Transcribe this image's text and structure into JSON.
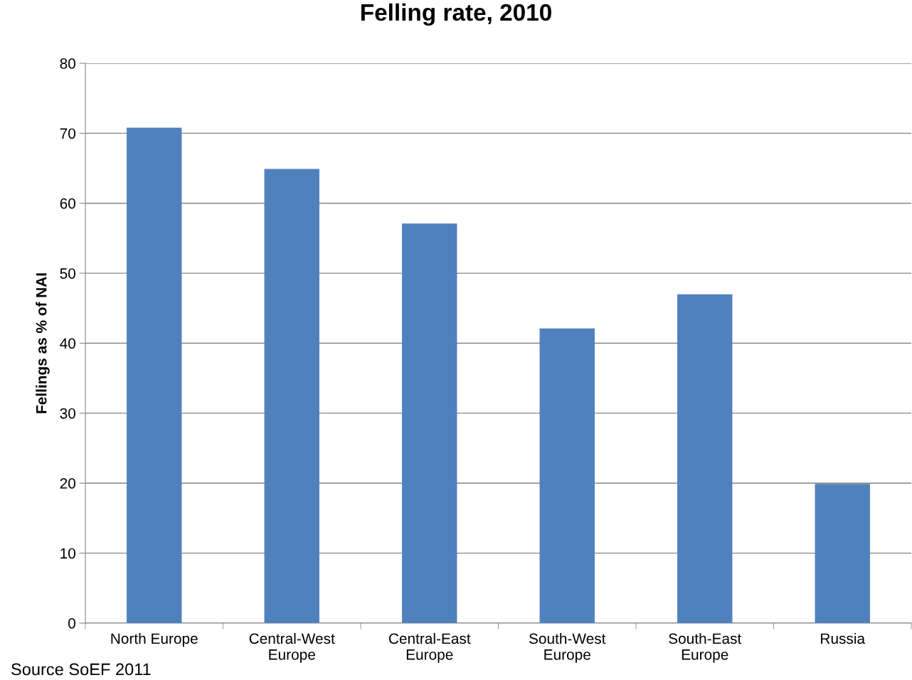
{
  "chart_data": {
    "type": "bar",
    "title": "Felling rate, 2010",
    "ylabel": "Fellings as % of NAI",
    "categories": [
      "North Europe",
      "Central-West\nEurope",
      "Central-East\nEurope",
      "South-West\nEurope",
      "South-East\nEurope",
      "Russia"
    ],
    "values": [
      70.8,
      64.9,
      57.1,
      42.1,
      47.0,
      19.9
    ],
    "color": "#4f81bd",
    "ylim": [
      0,
      80
    ],
    "yticks": [
      0,
      10,
      20,
      30,
      40,
      50,
      60,
      70,
      80
    ],
    "grid": "y",
    "legend": false,
    "annotations": [
      "Source SoEF 2011"
    ]
  }
}
